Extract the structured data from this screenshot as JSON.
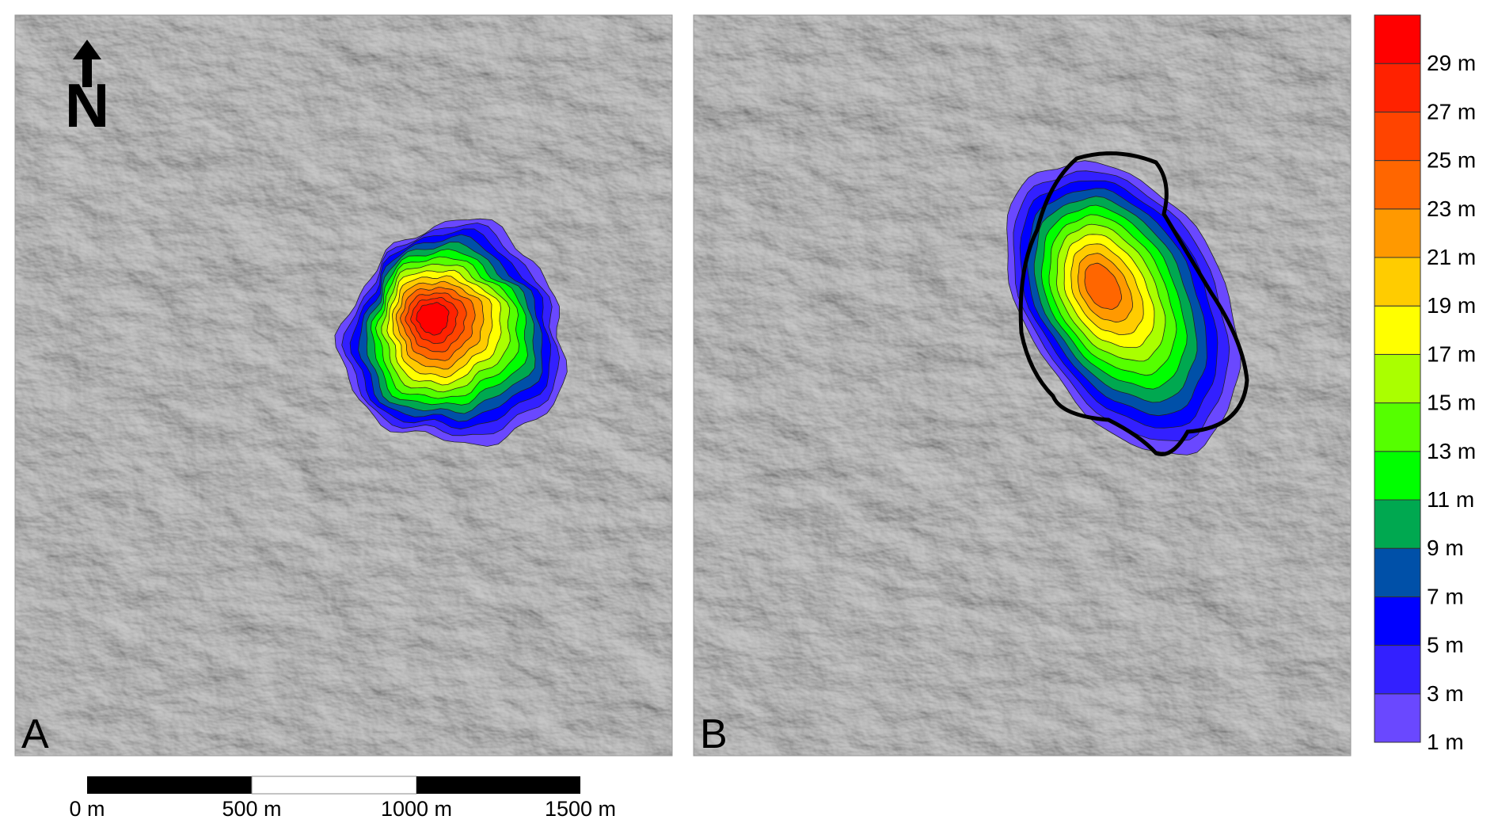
{
  "panels": [
    {
      "label": "A"
    },
    {
      "label": "B"
    }
  ],
  "north_arrow": {
    "letter": "N"
  },
  "legend": {
    "colors": [
      "#6a48ff",
      "#3320ff",
      "#0000ff",
      "#0050a8",
      "#00a850",
      "#00ff00",
      "#55ff00",
      "#aaff00",
      "#ffff00",
      "#ffcc00",
      "#ff9900",
      "#ff6600",
      "#ff4400",
      "#ff2200",
      "#ff0000"
    ],
    "labels": [
      "1 m",
      "3 m",
      "5 m",
      "7 m",
      "9 m",
      "11 m",
      "13 m",
      "15 m",
      "17 m",
      "19 m",
      "21 m",
      "23 m",
      "25 m",
      "27 m",
      "29 m"
    ]
  },
  "scale_bar": {
    "labels": [
      "0 m",
      "500 m",
      "1000 m",
      "1500 m"
    ]
  }
}
